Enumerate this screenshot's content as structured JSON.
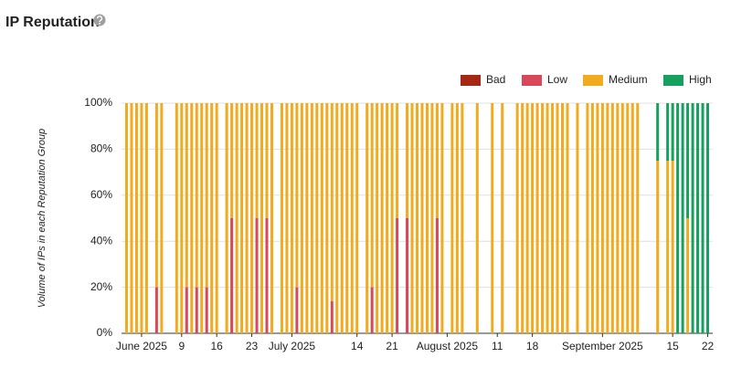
{
  "chart_data": {
    "type": "stacked_bar",
    "title": "IP Reputation",
    "y_label": "Volume of IPs in each Reputation Group",
    "x": [
      "2025-05-29",
      "2025-05-30",
      "2025-05-31",
      "2025-06-01",
      "2025-06-02",
      "2025-06-04",
      "2025-06-05",
      "2025-06-08",
      "2025-06-09",
      "2025-06-10",
      "2025-06-11",
      "2025-06-12",
      "2025-06-13",
      "2025-06-14",
      "2025-06-15",
      "2025-06-16",
      "2025-06-18",
      "2025-06-19",
      "2025-06-20",
      "2025-06-21",
      "2025-06-22",
      "2025-06-23",
      "2025-06-24",
      "2025-06-25",
      "2025-06-26",
      "2025-06-27",
      "2025-06-29",
      "2025-06-30",
      "2025-07-01",
      "2025-07-02",
      "2025-07-03",
      "2025-07-04",
      "2025-07-05",
      "2025-07-06",
      "2025-07-07",
      "2025-07-08",
      "2025-07-09",
      "2025-07-10",
      "2025-07-11",
      "2025-07-12",
      "2025-07-13",
      "2025-07-14",
      "2025-07-16",
      "2025-07-17",
      "2025-07-18",
      "2025-07-19",
      "2025-07-20",
      "2025-07-21",
      "2025-07-22",
      "2025-07-24",
      "2025-07-25",
      "2025-07-26",
      "2025-07-27",
      "2025-07-28",
      "2025-07-29",
      "2025-07-30",
      "2025-07-31",
      "2025-08-02",
      "2025-08-03",
      "2025-08-04",
      "2025-08-07",
      "2025-08-10",
      "2025-08-12",
      "2025-08-15",
      "2025-08-16",
      "2025-08-17",
      "2025-08-18",
      "2025-08-19",
      "2025-08-20",
      "2025-08-21",
      "2025-08-22",
      "2025-08-23",
      "2025-08-24",
      "2025-08-25",
      "2025-08-27",
      "2025-08-29",
      "2025-08-30",
      "2025-08-31",
      "2025-09-01",
      "2025-09-02",
      "2025-09-03",
      "2025-09-04",
      "2025-09-05",
      "2025-09-06",
      "2025-09-07",
      "2025-09-08",
      "2025-09-12",
      "2025-09-14",
      "2025-09-15",
      "2025-09-16",
      "2025-09-17",
      "2025-09-18",
      "2025-09-19",
      "2025-09-20",
      "2025-09-21",
      "2025-09-22"
    ],
    "series": [
      {
        "name": "Bad",
        "color": "#a52714",
        "values": [
          0,
          0,
          0,
          0,
          0,
          0,
          0,
          0,
          0,
          0,
          0,
          0,
          0,
          0,
          0,
          0,
          0,
          0,
          0,
          0,
          0,
          0,
          0,
          0,
          0,
          0,
          0,
          0,
          0,
          0,
          0,
          0,
          0,
          0,
          0,
          0,
          0,
          0,
          0,
          0,
          0,
          0,
          0,
          0,
          0,
          0,
          0,
          0,
          0,
          0,
          0,
          0,
          0,
          0,
          0,
          0,
          0,
          0,
          0,
          0,
          0,
          0,
          0,
          0,
          0,
          0,
          0,
          0,
          0,
          0,
          0,
          0,
          0,
          0,
          0,
          0,
          0,
          0,
          0,
          0,
          0,
          0,
          0,
          0,
          0,
          0,
          0,
          0,
          0,
          0,
          0,
          0,
          0,
          0,
          0,
          0
        ]
      },
      {
        "name": "Low",
        "color": "#d9475a",
        "values": [
          0,
          0,
          0,
          0,
          0,
          20,
          0,
          0,
          0,
          20,
          0,
          20,
          0,
          20,
          0,
          0,
          0,
          50,
          0,
          0,
          0,
          0,
          50,
          0,
          50,
          0,
          0,
          0,
          0,
          20,
          0,
          0,
          0,
          0,
          0,
          0,
          14,
          0,
          0,
          0,
          0,
          0,
          0,
          20,
          0,
          0,
          0,
          0,
          50,
          50,
          0,
          0,
          0,
          0,
          0,
          50,
          0,
          0,
          0,
          0,
          0,
          0,
          0,
          0,
          0,
          0,
          0,
          0,
          0,
          0,
          0,
          0,
          0,
          0,
          0,
          0,
          0,
          0,
          0,
          0,
          0,
          0,
          0,
          0,
          0,
          0,
          0,
          0,
          0,
          0,
          0,
          0,
          0,
          0,
          0,
          0
        ]
      },
      {
        "name": "Medium",
        "color": "#f2aa1f",
        "values": [
          100,
          100,
          100,
          100,
          100,
          80,
          100,
          100,
          100,
          80,
          100,
          80,
          100,
          80,
          100,
          100,
          100,
          50,
          100,
          100,
          100,
          100,
          50,
          100,
          50,
          100,
          100,
          100,
          100,
          80,
          100,
          100,
          100,
          100,
          100,
          100,
          86,
          100,
          100,
          100,
          100,
          100,
          100,
          80,
          100,
          100,
          100,
          100,
          50,
          50,
          100,
          100,
          100,
          100,
          100,
          50,
          100,
          100,
          100,
          100,
          100,
          100,
          100,
          100,
          100,
          100,
          100,
          100,
          100,
          100,
          100,
          100,
          100,
          100,
          100,
          100,
          100,
          100,
          100,
          100,
          100,
          100,
          100,
          100,
          100,
          100,
          75,
          75,
          75,
          0,
          0,
          50,
          0,
          0,
          0,
          0
        ]
      },
      {
        "name": "High",
        "color": "#16a05d",
        "values": [
          0,
          0,
          0,
          0,
          0,
          0,
          0,
          0,
          0,
          0,
          0,
          0,
          0,
          0,
          0,
          0,
          0,
          0,
          0,
          0,
          0,
          0,
          0,
          0,
          0,
          0,
          0,
          0,
          0,
          0,
          0,
          0,
          0,
          0,
          0,
          0,
          0,
          0,
          0,
          0,
          0,
          0,
          0,
          0,
          0,
          0,
          0,
          0,
          0,
          0,
          0,
          0,
          0,
          0,
          0,
          0,
          0,
          0,
          0,
          0,
          0,
          0,
          0,
          0,
          0,
          0,
          0,
          0,
          0,
          0,
          0,
          0,
          0,
          0,
          0,
          0,
          0,
          0,
          0,
          0,
          0,
          0,
          0,
          0,
          0,
          0,
          25,
          25,
          25,
          100,
          100,
          50,
          100,
          100,
          100,
          100
        ]
      }
    ],
    "xlim": [
      "2025-05-28",
      "2025-09-23"
    ],
    "xticks": [
      {
        "value": "2025-06-01",
        "label": "June 2025"
      },
      {
        "value": "2025-06-09",
        "label": "9"
      },
      {
        "value": "2025-06-16",
        "label": "16"
      },
      {
        "value": "2025-06-23",
        "label": "23"
      },
      {
        "value": "2025-07-01",
        "label": "July 2025"
      },
      {
        "value": "2025-07-14",
        "label": "14"
      },
      {
        "value": "2025-07-21",
        "label": "21"
      },
      {
        "value": "2025-08-01",
        "label": "August 2025"
      },
      {
        "value": "2025-08-11",
        "label": "11"
      },
      {
        "value": "2025-08-18",
        "label": "18"
      },
      {
        "value": "2025-09-01",
        "label": "September 2025"
      },
      {
        "value": "2025-09-15",
        "label": "15"
      },
      {
        "value": "2025-09-22",
        "label": "22"
      }
    ],
    "ylim": [
      0,
      100
    ],
    "yticks": [
      {
        "value": 0,
        "label": "0%"
      },
      {
        "value": 20,
        "label": "20%"
      },
      {
        "value": 40,
        "label": "40%"
      },
      {
        "value": 60,
        "label": "60%"
      },
      {
        "value": 80,
        "label": "80%"
      },
      {
        "value": 100,
        "label": "100%"
      }
    ],
    "grid": true,
    "legend": "top-right"
  }
}
